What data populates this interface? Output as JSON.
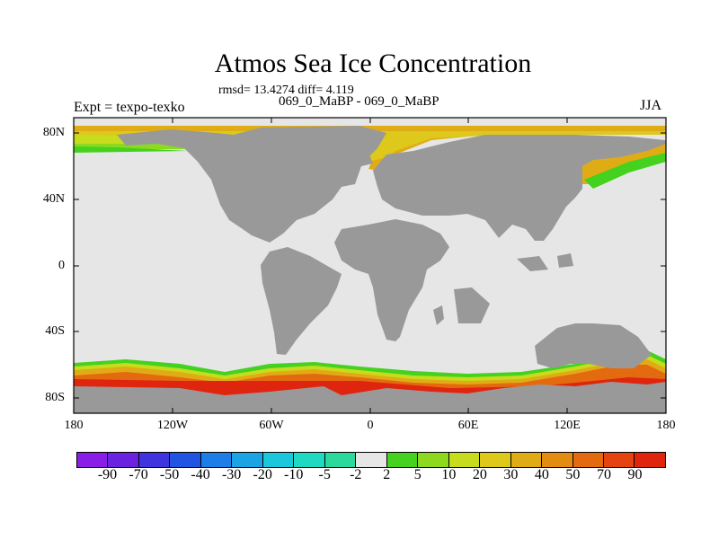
{
  "title": "Atmos Sea Ice Concentration",
  "stats_line": "rmsd= 13.4274 diff= 4.119",
  "comparison_line": "069_0_MaBP - 069_0_MaBP",
  "left_label": "Expt = texpo-texko",
  "right_label": "JJA",
  "lat_ticks": [
    "80N",
    "40N",
    "0",
    "40S",
    "80S"
  ],
  "lon_ticks": [
    "180",
    "120W",
    "60W",
    "0",
    "60E",
    "120E",
    "180"
  ],
  "colorbar": {
    "labels": [
      "-90",
      "-70",
      "-50",
      "-40",
      "-30",
      "-20",
      "-10",
      "-5",
      "-2",
      "2",
      "5",
      "10",
      "20",
      "30",
      "40",
      "50",
      "70",
      "90"
    ],
    "colors": [
      "#8a1ee6",
      "#6a24e0",
      "#4034df",
      "#1f55e0",
      "#1c7ee6",
      "#1aa4e3",
      "#1bc7da",
      "#1fd9c0",
      "#2cd99d",
      "#e6e6e6",
      "#44d21e",
      "#8cd91f",
      "#c8dc1e",
      "#ddc81b",
      "#e0ac16",
      "#e28c12",
      "#e46a10",
      "#e54410",
      "#e0250f"
    ]
  },
  "colors": {
    "land": "#999999",
    "ocean": "#e6e6e6"
  }
}
